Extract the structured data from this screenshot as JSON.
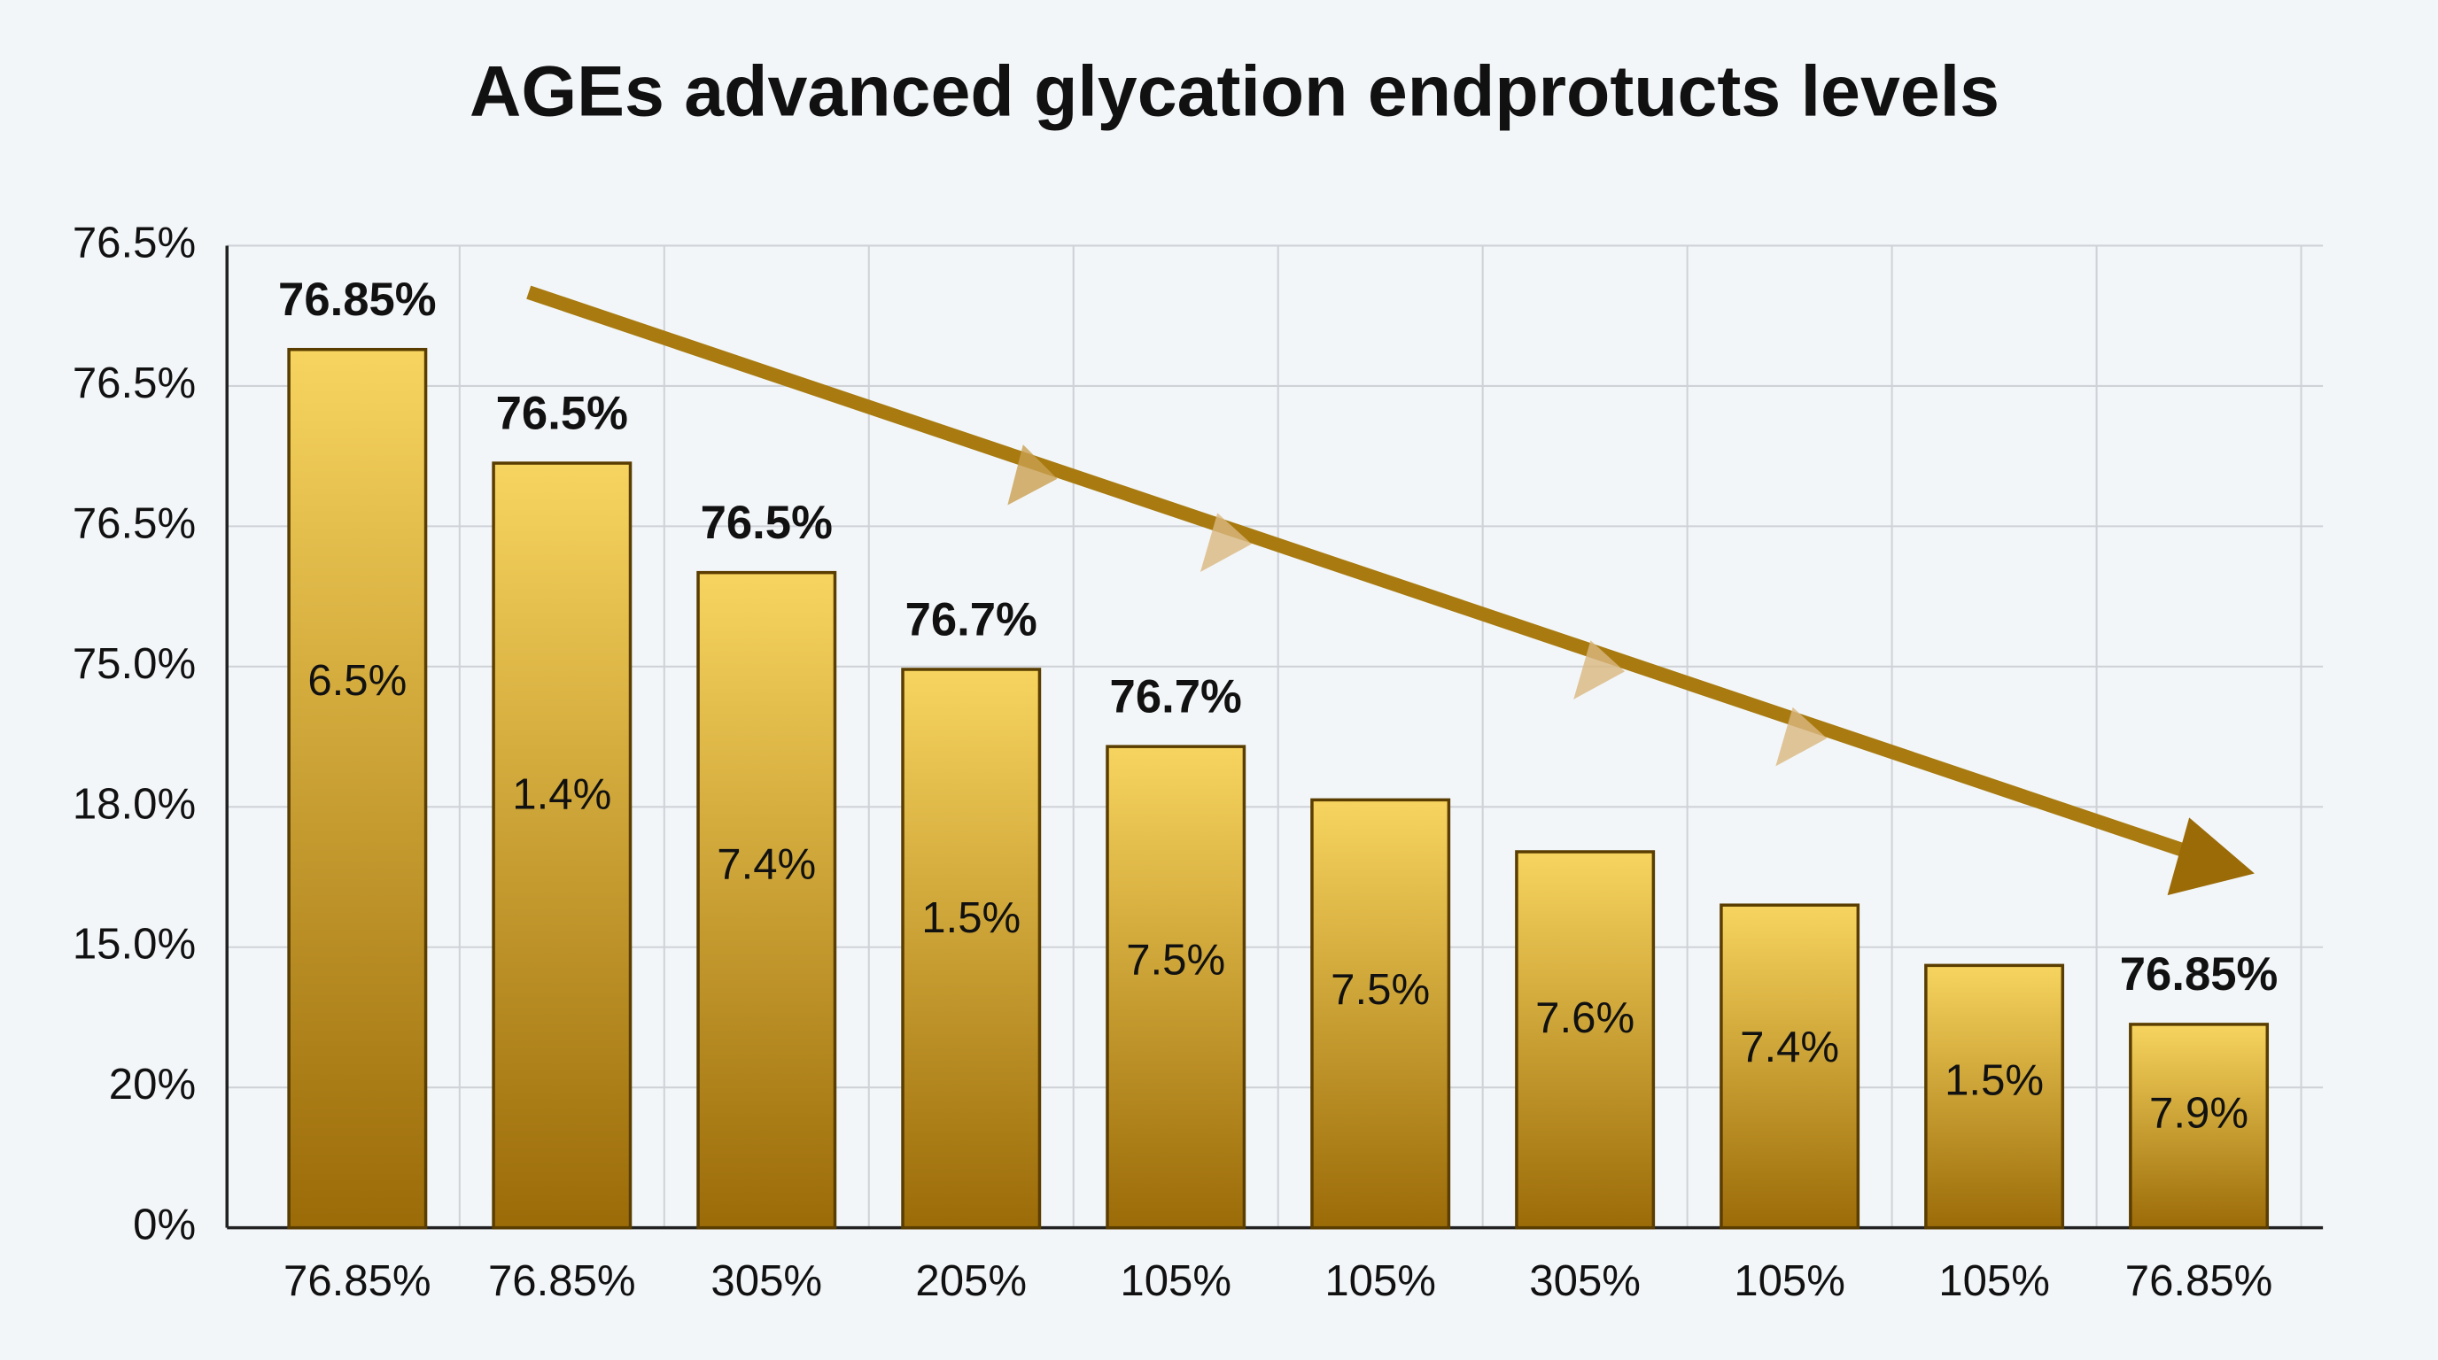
{
  "chart_data": {
    "type": "bar",
    "title": "AGEs advanced glycation endprotucts levels",
    "categories": [
      "76.85%",
      "76.85%",
      "305%",
      "205%",
      "105%",
      "105%",
      "305%",
      "105%",
      "105%",
      "76.85%"
    ],
    "values": [
      6.26,
      5.45,
      4.67,
      3.98,
      3.43,
      3.05,
      2.68,
      2.3,
      1.87,
      1.45
    ],
    "top_labels": [
      "76.85%",
      "76.5%",
      "76.5%",
      "76.7%",
      "76.7%",
      null,
      null,
      null,
      null,
      "76.85%"
    ],
    "inner_labels": [
      "6.5%",
      "1.4%",
      "7.4%",
      "1.5%",
      "7.5%",
      "7.5%",
      "7.6%",
      "7.4%",
      "1.5%",
      "7.9%"
    ],
    "gradient": [
      "#f7d45f",
      "#9b6b08"
    ],
    "ylim": [
      0,
      7
    ],
    "yticks": [
      {
        "value": 0,
        "label": "0%"
      },
      {
        "value": 1,
        "label": "20%"
      },
      {
        "value": 2,
        "label": "15.0%"
      },
      {
        "value": 3,
        "label": "18.0%"
      },
      {
        "value": 4,
        "label": "75.0%"
      },
      {
        "value": 5,
        "label": "76.5%"
      },
      {
        "value": 6,
        "label": "76.5%"
      },
      {
        "value": 7,
        "label": "76.5%"
      }
    ],
    "grid": true
  }
}
